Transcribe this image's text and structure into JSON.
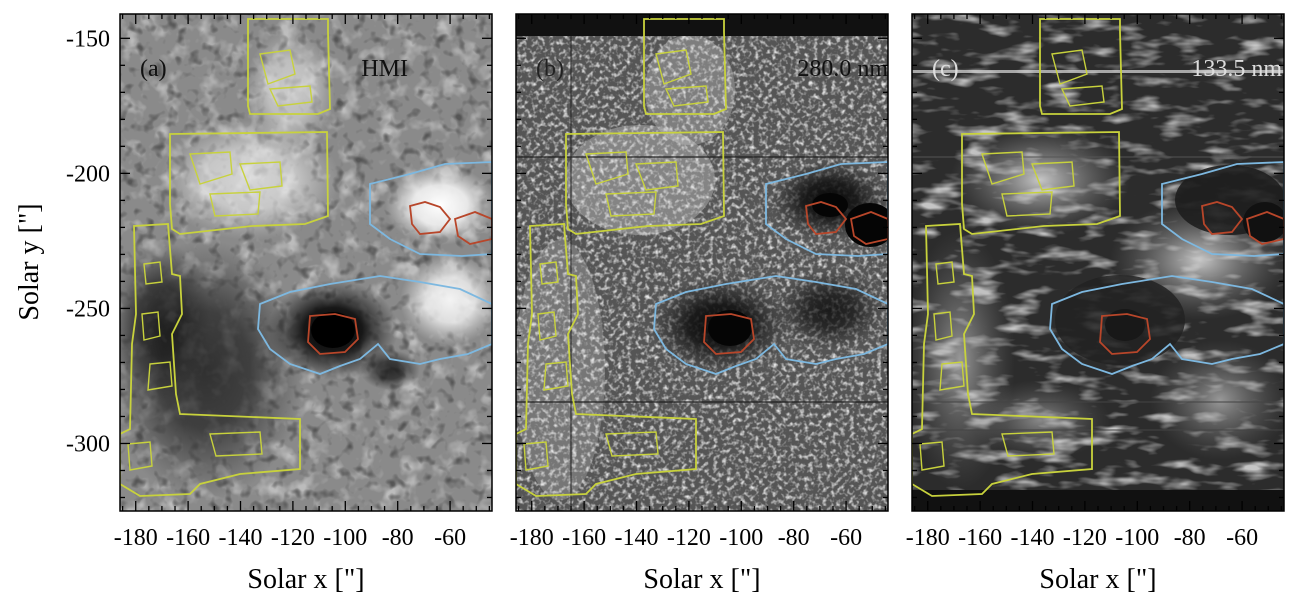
{
  "chart_data": {
    "type": "image",
    "shared_y_axis": {
      "label": "Solar y [\"]",
      "ylim": [
        -325,
        -141
      ],
      "ticks": [
        -150,
        -200,
        -250,
        -300
      ]
    },
    "panels": [
      {
        "id": "a",
        "label": "(a)",
        "channel": "HMI",
        "xlabel": "Solar x [\"]",
        "xlim": [
          -186,
          -44
        ],
        "ticks": [
          -180,
          -160,
          -140,
          -120,
          -100,
          -80,
          -60
        ]
      },
      {
        "id": "b",
        "label": "(b)",
        "channel": "280.0 nm",
        "xlabel": "Solar x [\"]",
        "xlim": [
          -186,
          -44
        ],
        "ticks": [
          -180,
          -160,
          -140,
          -120,
          -100,
          -80,
          -60
        ]
      },
      {
        "id": "c",
        "label": "(c)",
        "channel": "133.5 nm",
        "xlabel": "Solar x [\"]",
        "xlim": [
          -186,
          -44
        ],
        "ticks": [
          -180,
          -160,
          -140,
          -120,
          -100,
          -80,
          -60
        ]
      }
    ],
    "contour_colors": {
      "plage": "#c8d23c",
      "penumbra": "#7db8e0",
      "umbra": "#b8462a"
    }
  }
}
